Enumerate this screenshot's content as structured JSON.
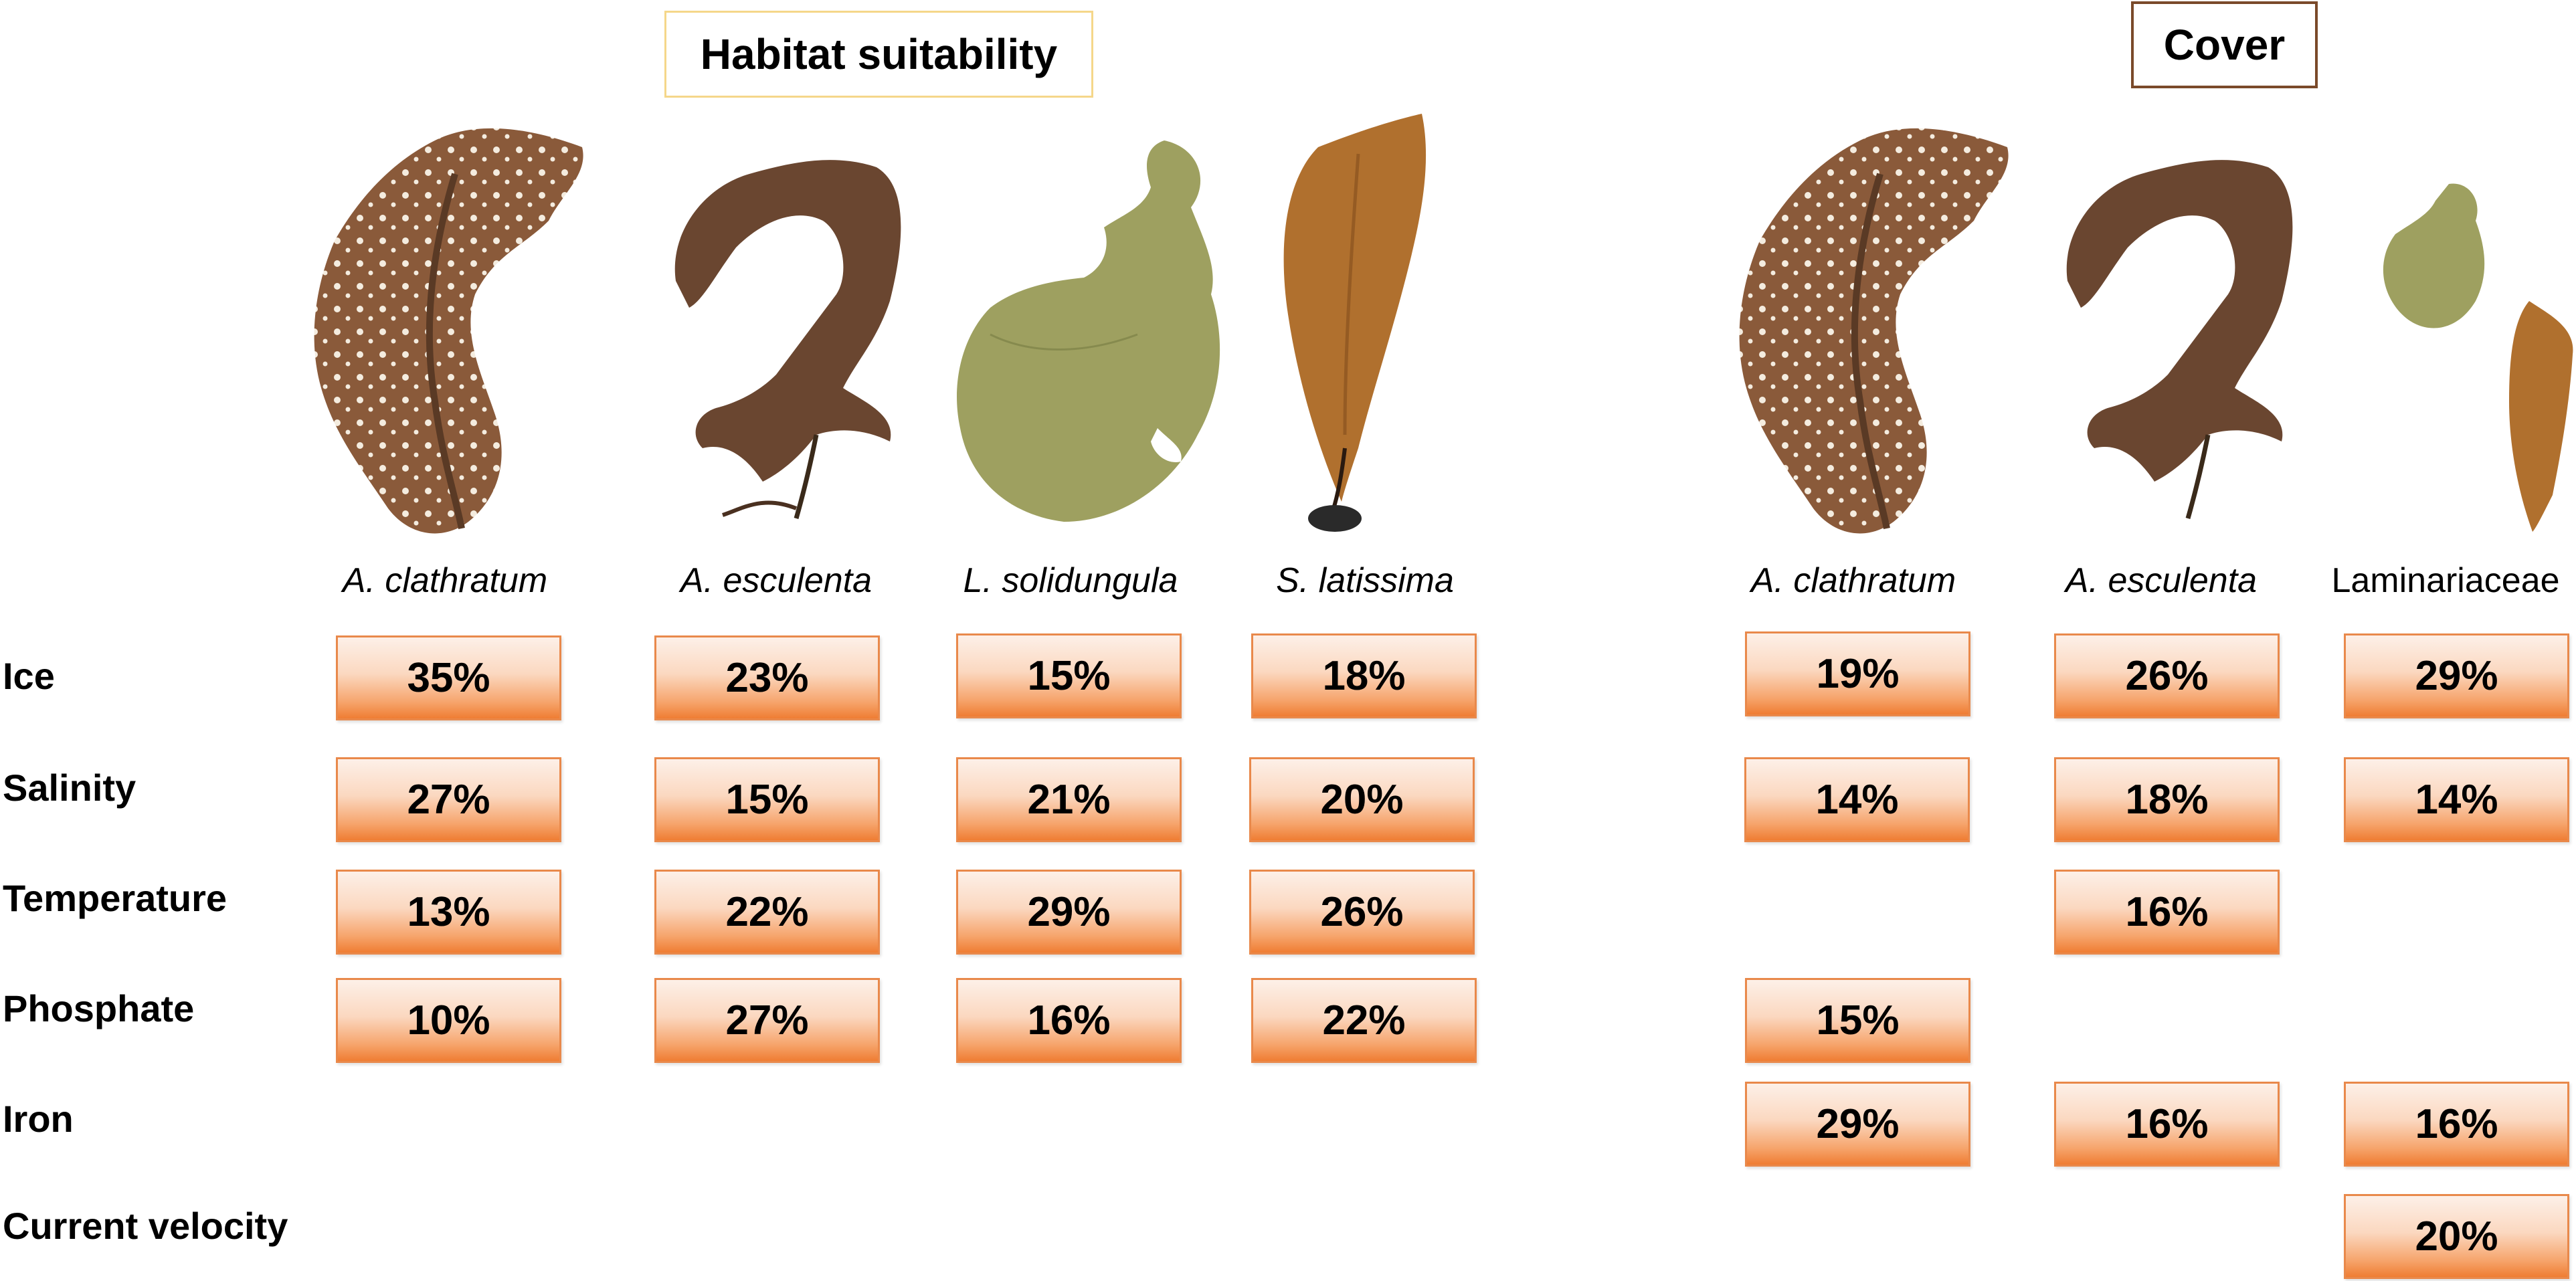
{
  "sections": {
    "habitat_suitability": "Habitat suitability",
    "cover": "Cover"
  },
  "species": {
    "hs": [
      "A. clathratum",
      "A. esculenta",
      "L. solidungula",
      "S. latissima"
    ],
    "cover": [
      "A. clathratum",
      "A. esculenta",
      "Laminariaceae"
    ]
  },
  "rows": [
    "Ice",
    "Salinity",
    "Temperature",
    "Phosphate",
    "Iron",
    "Current velocity"
  ],
  "habitat_suitability_values": {
    "Ice": [
      "35%",
      "23%",
      "15%",
      "18%"
    ],
    "Salinity": [
      "27%",
      "15%",
      "21%",
      "20%"
    ],
    "Temperature": [
      "13%",
      "22%",
      "29%",
      "26%"
    ],
    "Phosphate": [
      "10%",
      "27%",
      "16%",
      "22%"
    ]
  },
  "cover_values": {
    "Ice": [
      "19%",
      "26%",
      "29%"
    ],
    "Salinity": [
      "14%",
      "18%",
      "14%"
    ],
    "Temperature": [
      "",
      "16%",
      ""
    ],
    "Phosphate": [
      "15%",
      "",
      ""
    ],
    "Iron": [
      "29%",
      "16%",
      "16%"
    ],
    "Current velocity": [
      "",
      "",
      "20%"
    ]
  },
  "colors": {
    "box_border": "#e9894b",
    "box_gradient_top": "#fdf0e8",
    "box_gradient_bottom": "#ef7d33",
    "hs_title_border": "#f5d78a",
    "cover_title_border": "#7a4a2a",
    "kelp_brown": "#8a5a3a",
    "kelp_dark": "#4a3020",
    "kelp_olive": "#9ea060",
    "kelp_amber": "#b0702e"
  },
  "icons": [
    "a-clathratum-kelp-icon",
    "a-esculenta-kelp-icon",
    "l-solidungula-kelp-icon",
    "s-latissima-kelp-icon"
  ]
}
